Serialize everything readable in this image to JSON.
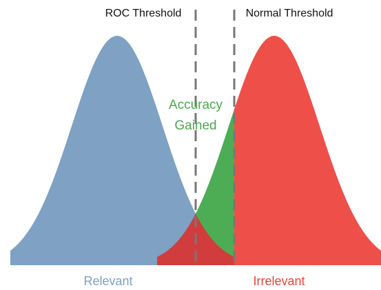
{
  "labels": {
    "roc_threshold": "ROC Threshold",
    "normal_threshold": "Normal Threshold",
    "accuracy_gained": [
      "Accuracy",
      "Gained"
    ],
    "relevant": "Relevant",
    "irrelevant": "Irrelevant"
  }
}
